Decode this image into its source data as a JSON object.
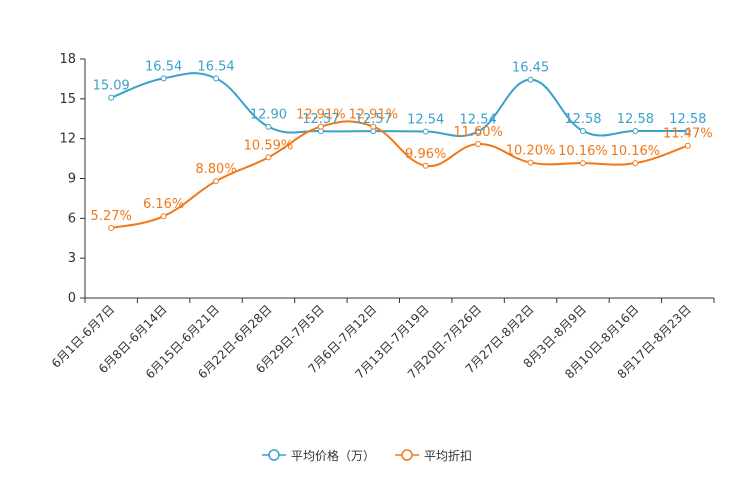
{
  "chart_data": {
    "type": "line",
    "title": "",
    "xlabel": "",
    "ylabel": "",
    "ylim": [
      0,
      18
    ],
    "yticks": [
      0,
      3,
      6,
      9,
      12,
      15,
      18
    ],
    "grid": false,
    "legend_position": "bottom-center",
    "categories": [
      "6月1日-6月7日",
      "6月8日-6月14日",
      "6月15日-6月21日",
      "6月22日-6月28日",
      "6月29日-7月5日",
      "7月6日-7月12日",
      "7月13日-7月19日",
      "7月20日-7月26日",
      "7月27日-8月2日",
      "8月3日-8月9日",
      "8月10日-8月16日",
      "8月17日-8月23日"
    ],
    "series": [
      {
        "name": "平均价格（万）",
        "color": "#3ba1cc",
        "values": [
          15.09,
          16.54,
          16.54,
          12.9,
          12.57,
          12.57,
          12.54,
          12.54,
          16.45,
          12.58,
          12.58,
          12.58
        ],
        "labels": [
          "15.09",
          "16.54",
          "16.54",
          "12.90",
          "12.57",
          "12.57",
          "12.54",
          "12.54",
          "16.45",
          "12.58",
          "12.58",
          "12.58"
        ]
      },
      {
        "name": "平均折扣",
        "color": "#f07818",
        "values": [
          5.27,
          6.16,
          8.8,
          10.59,
          12.91,
          12.91,
          9.96,
          11.6,
          10.2,
          10.16,
          10.16,
          11.47
        ],
        "labels": [
          "5.27%",
          "6.16%",
          "8.80%",
          "10.59%",
          "12.91%",
          "12.91%",
          "9.96%",
          "11.60%",
          "10.20%",
          "10.16%",
          "10.16%",
          "11.47%"
        ]
      }
    ]
  }
}
